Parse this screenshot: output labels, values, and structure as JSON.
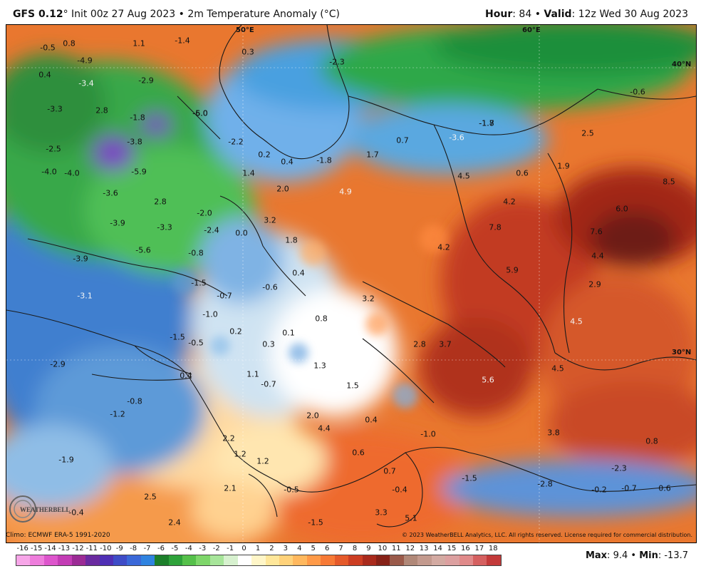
{
  "header": {
    "model": "GFS 0.12",
    "degree_symbol": "°",
    "init": "Init 00z 27 Aug 2023",
    "bullet": "•",
    "product": "2m Temperature Anomaly (°C)",
    "hour_label": "Hour",
    "hour_value": "84",
    "valid_label": "Valid",
    "valid_value": "12z Wed 30 Aug 2023"
  },
  "grid_labels": [
    "50°E",
    "60°E",
    "40°N",
    "30°N"
  ],
  "anomaly_labels": [
    "-0.5",
    "0.8",
    "1.1",
    "-1.4",
    "0.3",
    "-4.9",
    "-2.3",
    "0.4",
    "-3.4",
    "-2.9",
    "-3.3",
    "2.8",
    "-1.8",
    "-5.0",
    "-1.7",
    "-0.6",
    "-2.5",
    "-3.8",
    "-2.2",
    "0.2",
    "0.4",
    "-1.8",
    "1.7",
    "0.7",
    "-3.6",
    "-1.8",
    "2.5",
    "1.9",
    "-4.0",
    "-4.0",
    "-5.9",
    "1.4",
    "-6.0",
    "4.5",
    "0.6",
    "8.5",
    "2.0",
    "4.9",
    "4.2",
    "6.0",
    "-3.6",
    "2.8",
    "-2.0",
    "3.2",
    "7.8",
    "7.6",
    "-3.9",
    "-3.3",
    "-2.4",
    "0.0",
    "1.8",
    "4.2",
    "4.4",
    "-5.6",
    "-0.8",
    "5.9",
    "-3.9",
    "0.4",
    "-1.5",
    "-0.6",
    "2.9",
    "-0.7",
    "3.2",
    "-3.1",
    "-1.0",
    "0.8",
    "4.5",
    "0.2",
    "0.1",
    "-1.5",
    "-0.5",
    "0.3",
    "2.8",
    "3.7",
    "-2.9",
    "1.3",
    "4.5",
    "1.1",
    "0.4",
    "-0.7",
    "1.5",
    "5.6",
    "-0.8",
    "-1.2",
    "2.0",
    "0.4",
    "4.4",
    "-1.0",
    "3.8",
    "2.2",
    "0.8",
    "0.6",
    "-1.9",
    "1.2",
    "1.2",
    "0.7",
    "-2.3",
    "2.5",
    "2.1",
    "-0.5",
    "-0.4",
    "-1.5",
    "-2.8",
    "-0.2",
    "-0.7",
    "0.6",
    "-0.4",
    "3.3",
    "2.4",
    "-1.5",
    "5.1"
  ],
  "footer": {
    "climo": "Climo: ECMWF ERA-5 1991-2020",
    "copyright": "© 2023 WeatherBELL Analytics, LLC. All rights reserved. License required for commercial distribution.",
    "logo_text": "WEATHERBELL",
    "max_label": "Max",
    "max_value": "9.4",
    "min_label": "Min",
    "min_value": "-13.7"
  },
  "colorbar": {
    "ticks": [
      "-16",
      "-15",
      "-14",
      "-13",
      "-12",
      "-11",
      "-10",
      "-9",
      "-8",
      "-7",
      "-6",
      "-5",
      "-4",
      "-3",
      "-2",
      "-1",
      "0",
      "1",
      "2",
      "3",
      "4",
      "5",
      "6",
      "7",
      "8",
      "9",
      "10",
      "11",
      "12",
      "13",
      "14",
      "15",
      "16",
      "17",
      "18"
    ],
    "colors": [
      "#f7a6e8",
      "#ee7ddc",
      "#dd55cc",
      "#c33cb5",
      "#9b2b95",
      "#6a2aa0",
      "#4f2fb5",
      "#3e4cc7",
      "#3a68d8",
      "#2f83e0",
      "#1c7f2a",
      "#2ea23a",
      "#55c04a",
      "#7ed66a",
      "#a7e59a",
      "#d7f1cf",
      "#ffffff",
      "#fff6c8",
      "#ffe79a",
      "#ffd27a",
      "#ffb85e",
      "#ff9a48",
      "#f77a36",
      "#e55a2a",
      "#cc3d22",
      "#a92a1c",
      "#862117",
      "#9a5a4a",
      "#b08878",
      "#c39a8e",
      "#d3aaa2",
      "#dca0a0",
      "#e08a8a",
      "#d56060",
      "#c33a3a"
    ]
  }
}
